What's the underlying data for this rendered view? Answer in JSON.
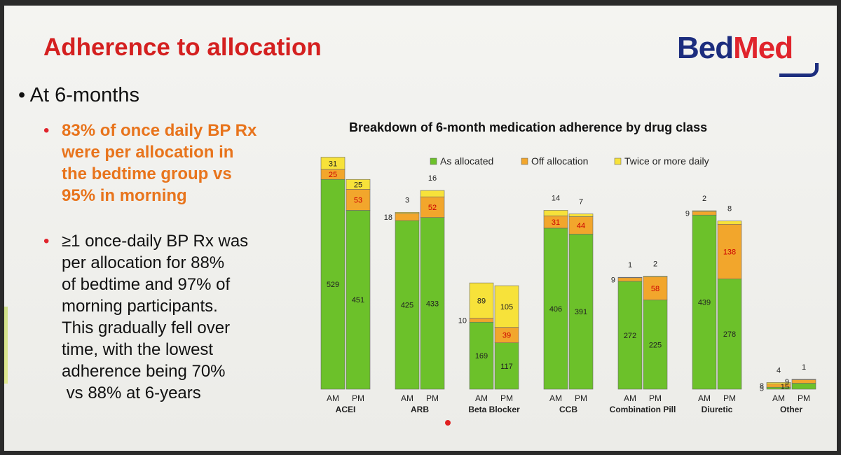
{
  "slide": {
    "title": "Adherence to allocation",
    "logo": {
      "part1": "Bed",
      "part2": "Med"
    },
    "bullet_main": "At 6-months",
    "sub_bullets": [
      [
        "83% of once daily BP Rx",
        "were per allocation in",
        "the bedtime group vs",
        "95% in morning"
      ],
      [
        "≥1 once-daily BP Rx was",
        "per allocation for 88%",
        "of bedtime and 97% of",
        "morning participants.",
        "This gradually fell over",
        "time, with the lowest",
        "adherence being 70%",
        " vs 88% at 6-years"
      ]
    ]
  },
  "chart_data": {
    "type": "bar",
    "stacked": true,
    "title": "Breakdown of 6-month medication adherence by drug class",
    "legend_position": "top",
    "series": [
      {
        "name": "As allocated",
        "color": "#6cc12a"
      },
      {
        "name": "Off allocation",
        "color": "#f2a62c"
      },
      {
        "name": "Twice or more daily",
        "color": "#f7e23a"
      }
    ],
    "groups": [
      {
        "name": "ACEI",
        "bars": [
          {
            "label": "AM",
            "values": [
              529,
              25,
              31
            ],
            "labels": [
              "529",
              "25",
              "31"
            ]
          },
          {
            "label": "PM",
            "values": [
              451,
              53,
              25
            ],
            "labels": [
              "451",
              "53",
              "25"
            ]
          }
        ]
      },
      {
        "name": "ARB",
        "bars": [
          {
            "label": "AM",
            "values": [
              425,
              18,
              3
            ],
            "labels": [
              "425",
              "18",
              "3"
            ]
          },
          {
            "label": "PM",
            "values": [
              433,
              52,
              16
            ],
            "labels": [
              "433",
              "52",
              "16"
            ]
          }
        ]
      },
      {
        "name": "Beta Blocker",
        "bars": [
          {
            "label": "AM",
            "values": [
              169,
              10,
              89
            ],
            "labels": [
              "169",
              "10",
              "89"
            ]
          },
          {
            "label": "PM",
            "values": [
              117,
              39,
              105
            ],
            "labels": [
              "117",
              "39",
              "105"
            ]
          }
        ]
      },
      {
        "name": "CCB",
        "bars": [
          {
            "label": "AM",
            "values": [
              406,
              31,
              14
            ],
            "labels": [
              "406",
              "31",
              "14"
            ]
          },
          {
            "label": "PM",
            "values": [
              391,
              44,
              7
            ],
            "labels": [
              "391",
              "44",
              "7"
            ]
          }
        ]
      },
      {
        "name": "Combination Pill",
        "bars": [
          {
            "label": "AM",
            "values": [
              272,
              9,
              1
            ],
            "labels": [
              "272",
              "9",
              "1"
            ]
          },
          {
            "label": "PM",
            "values": [
              225,
              58,
              2
            ],
            "labels": [
              "225",
              "58",
              "2"
            ]
          }
        ]
      },
      {
        "name": "Diuretic",
        "bars": [
          {
            "label": "AM",
            "values": [
              439,
              9,
              2
            ],
            "labels": [
              "439",
              "9",
              "2"
            ]
          },
          {
            "label": "PM",
            "values": [
              278,
              138,
              8
            ],
            "labels": [
              "278",
              "138",
              "8"
            ]
          }
        ]
      },
      {
        "name": "Other",
        "bars": [
          {
            "label": "AM",
            "values": [
              5,
              8,
              4
            ],
            "labels": [
              "5",
              "8",
              "4"
            ]
          },
          {
            "label": "PM",
            "values": [
              15,
              9,
              1
            ],
            "labels": [
              "15",
              "9",
              "1"
            ]
          }
        ]
      }
    ],
    "ylim": [
      0,
      600
    ],
    "grid": false,
    "xlabel": "",
    "ylabel": ""
  }
}
